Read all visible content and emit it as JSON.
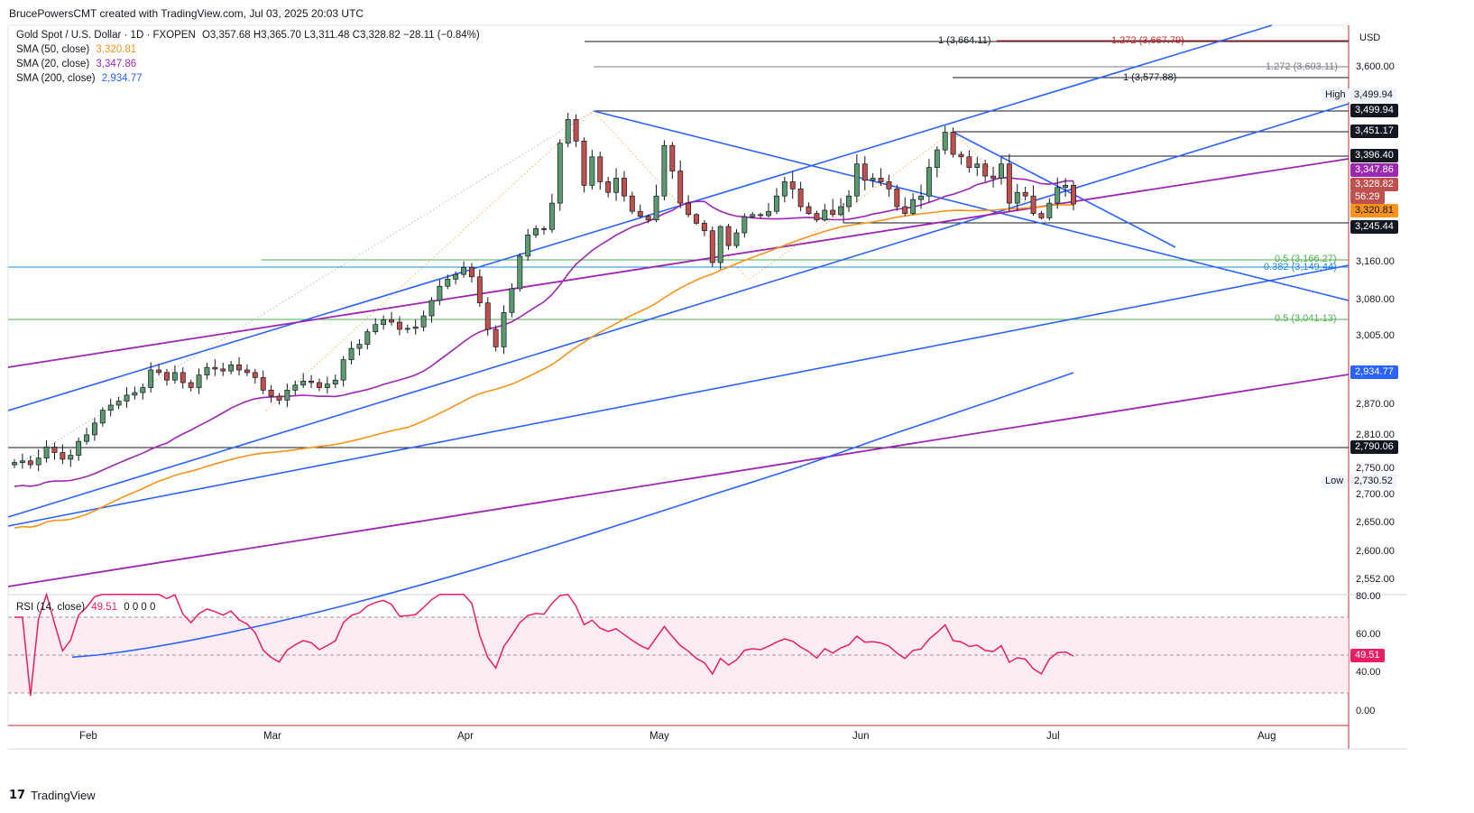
{
  "header": {
    "credit": "BrucePowersCMT created with TradingView.com, Jul 03, 2025 20:03 UTC"
  },
  "legend": {
    "symbol": "Gold Spot / U.S. Dollar · 1D · FXOPEN",
    "ohlc": "O3,357.68  H3,365.70  L3,311.48  C3,328.82  −28.11 (−0.84%)",
    "sma50_label": "SMA (50, close)",
    "sma50_value": "3,320.81",
    "sma20_label": "SMA (20, close)",
    "sma20_value": "3,347.86",
    "sma200_label": "SMA (200, close)",
    "sma200_value": "2,934.77",
    "rsi_label": "RSI (14, close)",
    "rsi_value": "49.51",
    "rsi_extra": "0  0  0  0"
  },
  "colors": {
    "up": "#5b9a6e",
    "down": "#c0504d",
    "sma50": "#f7931a",
    "sma20": "#9c27b0",
    "sma200": "#2962ff",
    "channel": "#2962ff",
    "fib_green": "#4caf50",
    "rsi_line": "#e91e63",
    "rsi_band": "#fce4ec"
  },
  "axis": {
    "currency": "USD",
    "price_ticks": [
      "3,600.00",
      "3,160.00",
      "3,080.00",
      "3,005.00",
      "2,870.00",
      "2,810.00",
      "2,750.00",
      "2,700.00",
      "2,650.00",
      "2,600.00",
      "2,552.00"
    ],
    "rsi_ticks": [
      "80.00",
      "60.00",
      "40.00",
      "0.00"
    ],
    "months": [
      "Feb",
      "Mar",
      "Apr",
      "May",
      "Jun",
      "Jul",
      "Aug"
    ]
  },
  "price_tags": {
    "high_label": "High",
    "high_value": "3,499.94",
    "low_label": "Low",
    "low_value": "2,730.52",
    "level_1": "3,499.94",
    "level_2": "3,451.17",
    "level_3": "3,396.40",
    "sma20": "3,347.86",
    "close": "3,328.82",
    "countdown": "56:29",
    "sma50": "3,320.81",
    "level_4": "3,245.44",
    "sma200": "2,934.77",
    "level_5": "2,790.06",
    "rsi": "49.51"
  },
  "fib_labels": {
    "f1": "1 (3,664.11)",
    "f2": "1.272 (3,667.79)",
    "f3": "1.272 (3,603.11)",
    "f4": "1 (3,577.88)",
    "f5": "0.5 (3,166.27)",
    "f6": "0.382 (3,149.44)",
    "f7": "0.5 (3,041.13)"
  },
  "chart_data": {
    "type": "candlestick",
    "title": "Gold Spot / U.S. Dollar · 1D · FXOPEN",
    "x_axis_labels": [
      "Feb",
      "Mar",
      "Apr",
      "May",
      "Jun",
      "Jul",
      "Aug"
    ],
    "y_axis_unit": "USD",
    "ylim": [
      2520,
      3700
    ],
    "last_ohlc": {
      "open": 3357.68,
      "high": 3365.7,
      "low": 3311.48,
      "close": 3328.82,
      "change": -28.11,
      "change_pct": -0.84
    },
    "closes_approx": [
      2762,
      2765,
      2758,
      2770,
      2790,
      2780,
      2768,
      2775,
      2800,
      2812,
      2835,
      2860,
      2870,
      2878,
      2890,
      2895,
      2905,
      2940,
      2935,
      2920,
      2935,
      2915,
      2905,
      2930,
      2945,
      2942,
      2938,
      2950,
      2940,
      2935,
      2925,
      2900,
      2888,
      2880,
      2900,
      2910,
      2918,
      2915,
      2905,
      2912,
      2920,
      2960,
      2982,
      2990,
      3015,
      3030,
      3040,
      3035,
      3020,
      3022,
      3025,
      3048,
      3080,
      3110,
      3125,
      3135,
      3150,
      3130,
      3075,
      3020,
      2985,
      3055,
      3105,
      3175,
      3225,
      3240,
      3238,
      3330,
      3425,
      3480,
      3430,
      3355,
      3395,
      3360,
      3345,
      3365,
      3340,
      3315,
      3292,
      3275,
      3340,
      3420,
      3375,
      3330,
      3300,
      3260,
      3235,
      3160,
      3245,
      3200,
      3230,
      3290,
      3300,
      3295,
      3315,
      3340,
      3360,
      3350,
      3325,
      3305,
      3275,
      3320,
      3300,
      3325,
      3340,
      3385,
      3362,
      3365,
      3360,
      3350,
      3325,
      3305,
      3335,
      3340,
      3380,
      3410,
      3450,
      3400,
      3395,
      3380,
      3385,
      3368,
      3365,
      3385,
      3330,
      3345,
      3340,
      3305,
      3285,
      3330,
      3352,
      3355,
      3328.82
    ],
    "series": [
      {
        "name": "SMA (50, close)",
        "last": 3320.81
      },
      {
        "name": "SMA (20, close)",
        "last": 3347.86
      },
      {
        "name": "SMA (200, close)",
        "last": 2934.77
      }
    ],
    "levels": [
      3499.94,
      3451.17,
      3396.4,
      3245.44,
      2790.06
    ],
    "fib_levels": [
      {
        "ratio": "1",
        "value": 3664.11
      },
      {
        "ratio": "1.272",
        "value": 3667.79
      },
      {
        "ratio": "1.272",
        "value": 3603.11
      },
      {
        "ratio": "1",
        "value": 3577.88
      },
      {
        "ratio": "0.5",
        "value": 3166.27
      },
      {
        "ratio": "0.382",
        "value": 3149.44
      },
      {
        "ratio": "0.5",
        "value": 3041.13
      }
    ],
    "high": 3499.94,
    "low": 2730.52,
    "rsi": {
      "name": "RSI (14, close)",
      "last": 49.51,
      "upper": 70,
      "lower": 30,
      "ylim": [
        0,
        80
      ]
    }
  }
}
